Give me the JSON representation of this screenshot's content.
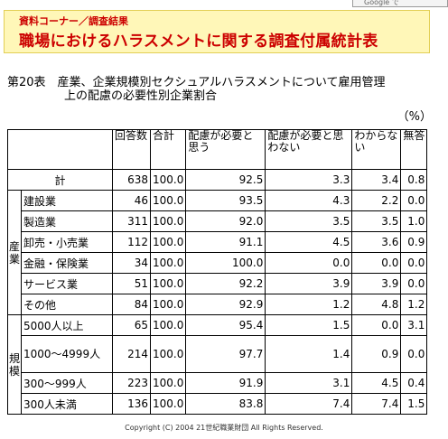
{
  "google_button": "Google で",
  "banner": {
    "subtitle": "資料コーナー／調査結果",
    "title": "職場におけるハラスメントに関する調査付属統計表"
  },
  "caption": {
    "line1": "第20表　産業、企業規模別セクシュアルハラスメントについて雇用管理",
    "line2": "上の配慮の必要性別企業割合"
  },
  "unit": "（%）",
  "table": {
    "headers": [
      "回答数",
      "合計",
      "配慮が必要と思う",
      "配慮が必要と思わない",
      "わからない",
      "無答"
    ],
    "total_row": {
      "label": "計",
      "values": [
        "638",
        "100.0",
        "92.5",
        "3.3",
        "3.4",
        "0.8"
      ]
    },
    "groups": [
      {
        "name": "産業",
        "rows": [
          {
            "label": "建設業",
            "values": [
              "46",
              "100.0",
              "93.5",
              "4.3",
              "2.2",
              "0.0"
            ]
          },
          {
            "label": "製造業",
            "values": [
              "311",
              "100.0",
              "92.0",
              "3.5",
              "3.5",
              "1.0"
            ]
          },
          {
            "label": "卸売・小売業",
            "values": [
              "112",
              "100.0",
              "91.1",
              "4.5",
              "3.6",
              "0.9"
            ]
          },
          {
            "label": "金融・保険業",
            "values": [
              "34",
              "100.0",
              "100.0",
              "0.0",
              "0.0",
              "0.0"
            ]
          },
          {
            "label": "サービス業",
            "values": [
              "51",
              "100.0",
              "92.2",
              "3.9",
              "3.9",
              "0.0"
            ]
          },
          {
            "label": "その他",
            "values": [
              "84",
              "100.0",
              "92.9",
              "1.2",
              "4.8",
              "1.2"
            ]
          }
        ]
      },
      {
        "name": "規模",
        "rows": [
          {
            "label": "5000人以上",
            "values": [
              "65",
              "100.0",
              "95.4",
              "1.5",
              "0.0",
              "3.1"
            ]
          },
          {
            "label": "1000～4999人",
            "values": [
              "214",
              "100.0",
              "97.7",
              "1.4",
              "0.9",
              "0.0"
            ]
          },
          {
            "label": "300～999人",
            "values": [
              "223",
              "100.0",
              "91.9",
              "3.1",
              "4.5",
              "0.4"
            ]
          },
          {
            "label": "300人未満",
            "values": [
              "136",
              "100.0",
              "83.8",
              "7.4",
              "7.4",
              "1.5"
            ]
          }
        ]
      }
    ]
  },
  "copyright": "Copyright (C) 2004  21世紀職業財団 All Rights Reserved."
}
